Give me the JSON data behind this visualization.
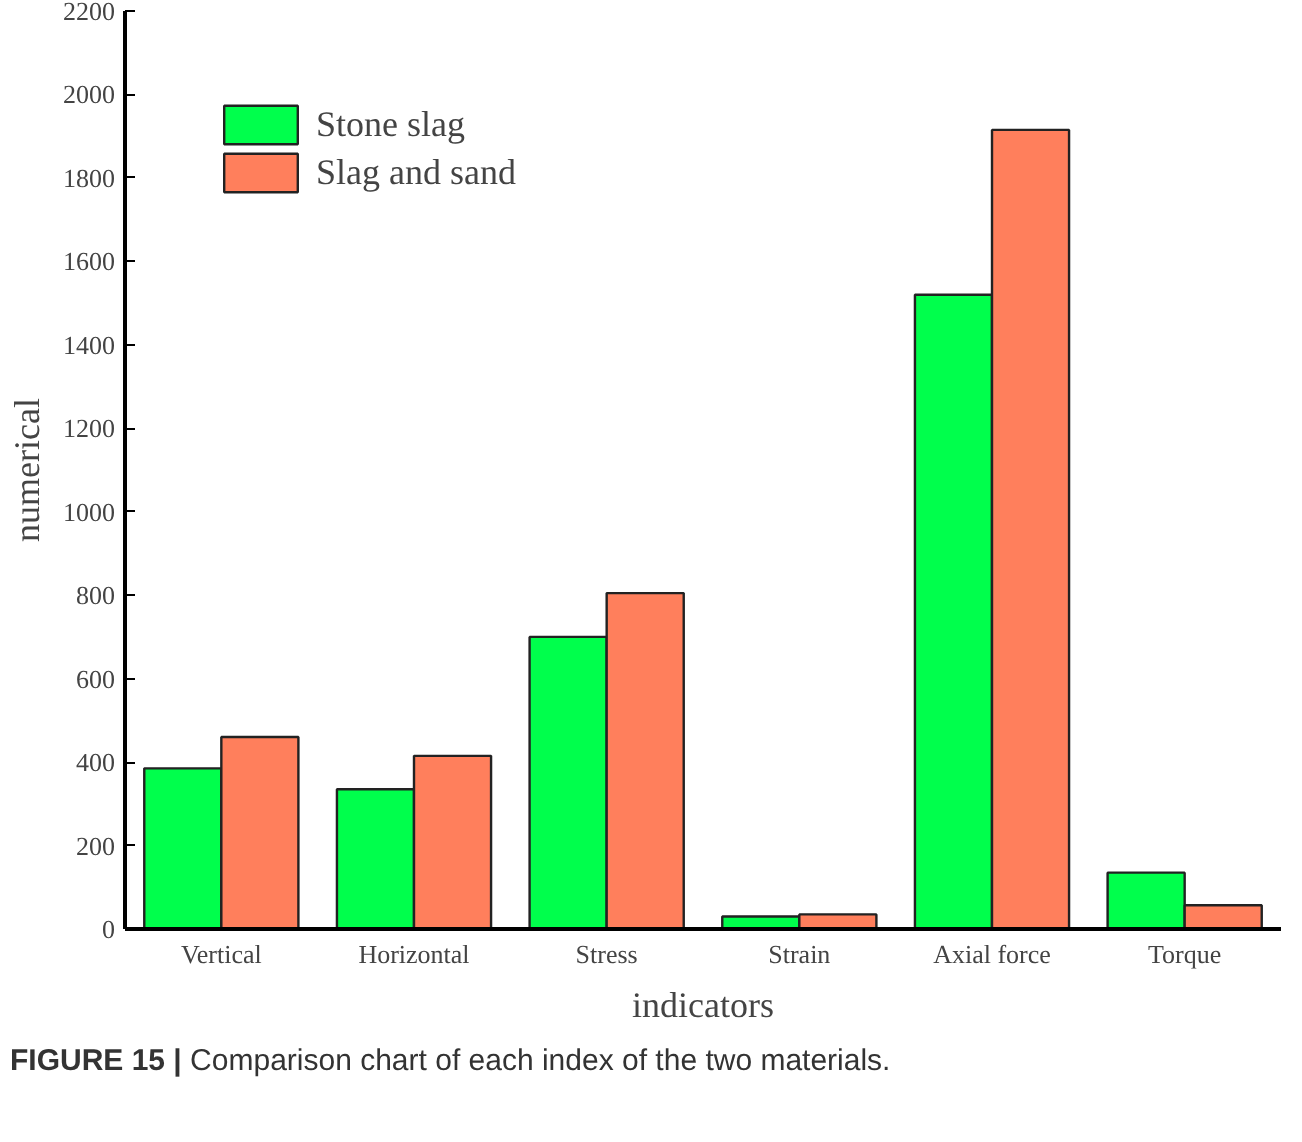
{
  "chart_data": {
    "type": "bar",
    "xlabel": "indicators",
    "ylabel": "numerical",
    "categories": [
      "Vertical",
      "Horizontal",
      "Stress",
      "Strain",
      "Axial force",
      "Torque"
    ],
    "series": [
      {
        "name": "Stone slag",
        "color": "#00ff4c",
        "values": [
          385,
          335,
          700,
          30,
          1520,
          135
        ]
      },
      {
        "name": "Slag and sand",
        "color": "#ff7f5c",
        "values": [
          460,
          415,
          805,
          35,
          1915,
          57
        ]
      }
    ],
    "ylim": [
      0,
      2200
    ],
    "yticks": [
      0,
      200,
      400,
      600,
      800,
      1000,
      1200,
      1400,
      1600,
      1800,
      2000,
      2200
    ],
    "grid": false,
    "legend": "top left",
    "annotations": [
      "FIGURE 15 | Comparison chart of each index of the two materials."
    ]
  }
}
